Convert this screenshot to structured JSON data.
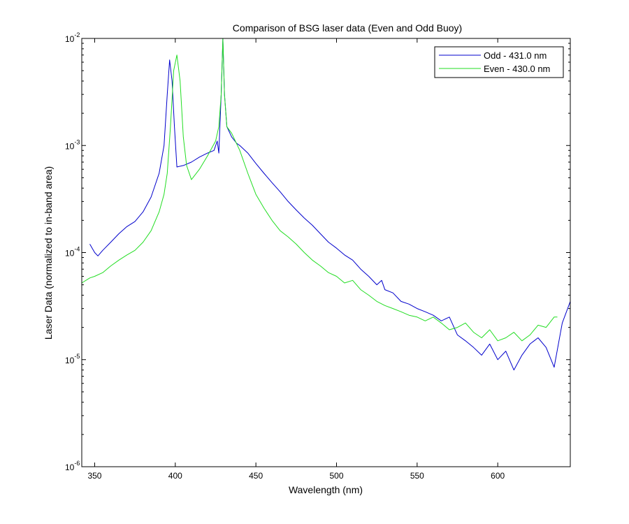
{
  "chart_data": {
    "type": "line",
    "title": "Comparison of BSG laser data (Even and Odd Buoy)",
    "xlabel": "Wavelength (nm)",
    "ylabel": "Laser Data (normalized to in-band area)",
    "xlim": [
      342,
      645
    ],
    "ylim": [
      1e-06,
      0.01
    ],
    "yscale": "log",
    "x_ticks": [
      350,
      400,
      450,
      500,
      550,
      600
    ],
    "y_ticks": [
      {
        "value": 1e-06,
        "base": "10",
        "exp": "-6"
      },
      {
        "value": 1e-05,
        "base": "10",
        "exp": "-5"
      },
      {
        "value": 0.0001,
        "base": "10",
        "exp": "-4"
      },
      {
        "value": 0.001,
        "base": "10",
        "exp": "-3"
      },
      {
        "value": 0.01,
        "base": "10",
        "exp": "-2"
      }
    ],
    "grid": false,
    "legend_position": "top-right",
    "series": [
      {
        "name": "Odd - 431.0 nm",
        "color": "#0000cc",
        "points": [
          [
            347,
            0.00012
          ],
          [
            350,
            0.0001
          ],
          [
            352,
            9.3e-05
          ],
          [
            355,
            0.000105
          ],
          [
            360,
            0.000125
          ],
          [
            365,
            0.00015
          ],
          [
            370,
            0.000175
          ],
          [
            375,
            0.000195
          ],
          [
            380,
            0.00024
          ],
          [
            385,
            0.00033
          ],
          [
            390,
            0.00055
          ],
          [
            393,
            0.001
          ],
          [
            395,
            0.003
          ],
          [
            396.5,
            0.0063
          ],
          [
            398,
            0.004
          ],
          [
            399.5,
            0.0015
          ],
          [
            401,
            0.00063
          ],
          [
            405,
            0.00065
          ],
          [
            410,
            0.0007
          ],
          [
            415,
            0.00078
          ],
          [
            420,
            0.00085
          ],
          [
            424,
            0.0009
          ],
          [
            426,
            0.0011
          ],
          [
            427,
            0.00085
          ],
          [
            428.5,
            0.003
          ],
          [
            429.5,
            0.01
          ],
          [
            430.5,
            0.003
          ],
          [
            432,
            0.0015
          ],
          [
            435,
            0.0012
          ],
          [
            438,
            0.00105
          ],
          [
            440,
            0.001
          ],
          [
            445,
            0.00085
          ],
          [
            450,
            0.00068
          ],
          [
            455,
            0.00055
          ],
          [
            460,
            0.00045
          ],
          [
            465,
            0.00037
          ],
          [
            470,
            0.0003
          ],
          [
            475,
            0.00025
          ],
          [
            480,
            0.00021
          ],
          [
            485,
            0.00018
          ],
          [
            490,
            0.00015
          ],
          [
            495,
            0.000125
          ],
          [
            500,
            0.00011
          ],
          [
            505,
            9.5e-05
          ],
          [
            510,
            8.5e-05
          ],
          [
            515,
            7e-05
          ],
          [
            520,
            6e-05
          ],
          [
            525,
            5e-05
          ],
          [
            528,
            5.5e-05
          ],
          [
            530,
            4.5e-05
          ],
          [
            535,
            4.2e-05
          ],
          [
            540,
            3.5e-05
          ],
          [
            545,
            3.3e-05
          ],
          [
            550,
            3e-05
          ],
          [
            555,
            2.8e-05
          ],
          [
            560,
            2.6e-05
          ],
          [
            565,
            2.3e-05
          ],
          [
            570,
            2.5e-05
          ],
          [
            575,
            1.7e-05
          ],
          [
            580,
            1.5e-05
          ],
          [
            585,
            1.3e-05
          ],
          [
            590,
            1.1e-05
          ],
          [
            595,
            1.4e-05
          ],
          [
            600,
            1e-05
          ],
          [
            605,
            1.2e-05
          ],
          [
            610,
            8e-06
          ],
          [
            615,
            1.1e-05
          ],
          [
            620,
            1.4e-05
          ],
          [
            625,
            1.6e-05
          ],
          [
            630,
            1.3e-05
          ],
          [
            635,
            8.5e-06
          ],
          [
            640,
            2.2e-05
          ],
          [
            645,
            3.5e-05
          ]
        ]
      },
      {
        "name": "Even - 430.0 nm",
        "color": "#22dd22",
        "points": [
          [
            342,
            5.2e-05
          ],
          [
            347,
            5.8e-05
          ],
          [
            350,
            6e-05
          ],
          [
            355,
            6.5e-05
          ],
          [
            360,
            7.5e-05
          ],
          [
            365,
            8.5e-05
          ],
          [
            370,
            9.5e-05
          ],
          [
            375,
            0.000105
          ],
          [
            380,
            0.000125
          ],
          [
            385,
            0.00016
          ],
          [
            390,
            0.00024
          ],
          [
            393,
            0.00035
          ],
          [
            395,
            0.00055
          ],
          [
            397,
            0.0015
          ],
          [
            399,
            0.005
          ],
          [
            401,
            0.007
          ],
          [
            403,
            0.004
          ],
          [
            405,
            0.0012
          ],
          [
            407,
            0.00065
          ],
          [
            410,
            0.00048
          ],
          [
            415,
            0.0006
          ],
          [
            420,
            0.0008
          ],
          [
            425,
            0.0011
          ],
          [
            427,
            0.0015
          ],
          [
            428.5,
            0.003
          ],
          [
            429.5,
            0.01
          ],
          [
            430.5,
            0.003
          ],
          [
            432,
            0.0015
          ],
          [
            435,
            0.0013
          ],
          [
            440,
            0.0009
          ],
          [
            445,
            0.00055
          ],
          [
            450,
            0.00035
          ],
          [
            455,
            0.00026
          ],
          [
            460,
            0.0002
          ],
          [
            465,
            0.00016
          ],
          [
            470,
            0.00014
          ],
          [
            475,
            0.00012
          ],
          [
            480,
            0.0001
          ],
          [
            485,
            8.5e-05
          ],
          [
            490,
            7.5e-05
          ],
          [
            495,
            6.5e-05
          ],
          [
            500,
            6e-05
          ],
          [
            505,
            5.2e-05
          ],
          [
            510,
            5.5e-05
          ],
          [
            515,
            4.5e-05
          ],
          [
            520,
            4e-05
          ],
          [
            525,
            3.5e-05
          ],
          [
            530,
            3.2e-05
          ],
          [
            535,
            3e-05
          ],
          [
            540,
            2.8e-05
          ],
          [
            545,
            2.6e-05
          ],
          [
            550,
            2.5e-05
          ],
          [
            555,
            2.3e-05
          ],
          [
            560,
            2.5e-05
          ],
          [
            565,
            2.2e-05
          ],
          [
            570,
            1.9e-05
          ],
          [
            575,
            2e-05
          ],
          [
            580,
            2.2e-05
          ],
          [
            585,
            1.8e-05
          ],
          [
            590,
            1.6e-05
          ],
          [
            595,
            1.9e-05
          ],
          [
            600,
            1.5e-05
          ],
          [
            605,
            1.6e-05
          ],
          [
            610,
            1.8e-05
          ],
          [
            615,
            1.5e-05
          ],
          [
            620,
            1.7e-05
          ],
          [
            625,
            2.1e-05
          ],
          [
            630,
            2e-05
          ],
          [
            635,
            2.5e-05
          ],
          [
            637,
            2.5e-05
          ]
        ]
      }
    ]
  }
}
